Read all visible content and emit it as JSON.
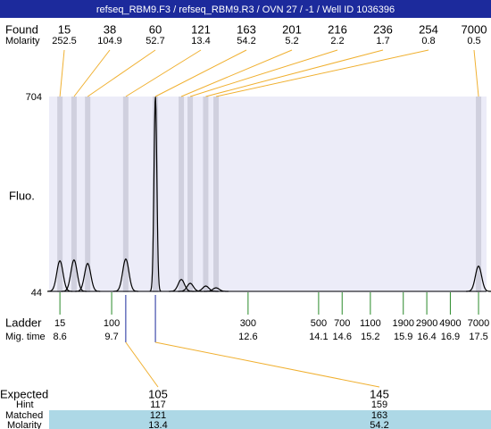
{
  "header": {
    "title": "refseq_RBM9.F3 / refseq_RBM9.R3 / OVN 27 / -1 / Well ID 1036396"
  },
  "chart_data": {
    "type": "electropherogram",
    "y_label": "Fluo.",
    "ylim": [
      44,
      704
    ],
    "yticks": [
      44,
      704
    ],
    "xlim": [
      8.37,
      17.67
    ],
    "found": {
      "label": "Found",
      "molarity_label": "Molarity",
      "sizes": [
        15,
        38,
        60,
        121,
        163,
        201,
        216,
        236,
        254,
        7000
      ],
      "molarity": [
        252.5,
        104.9,
        52.7,
        13.4,
        54.2,
        5.2,
        2.2,
        1.7,
        0.8,
        0.5
      ],
      "mig_times": [
        8.6,
        8.9,
        9.19,
        10.0,
        10.63,
        11.18,
        11.37,
        11.7,
        11.92,
        17.5
      ],
      "heights": [
        150,
        153,
        141,
        156,
        704,
        87,
        74,
        65,
        59,
        132
      ]
    },
    "ladder": {
      "label": "Ladder",
      "mig_time_label": "Mig. time",
      "sizes": [
        15,
        100,
        300,
        500,
        700,
        1100,
        1900,
        2900,
        4900,
        7000
      ],
      "mig_times": [
        8.6,
        9.7,
        12.6,
        14.1,
        14.6,
        15.2,
        15.9,
        16.4,
        16.9,
        17.5
      ]
    },
    "expected": {
      "label": "Expected",
      "hint_label": "Hint",
      "matched_label": "Matched",
      "molarity_label": "Molarity",
      "values": [
        105,
        145
      ],
      "hint": [
        117,
        159
      ],
      "matched": [
        121,
        163
      ],
      "molarity": [
        13.4,
        54.2
      ]
    }
  }
}
